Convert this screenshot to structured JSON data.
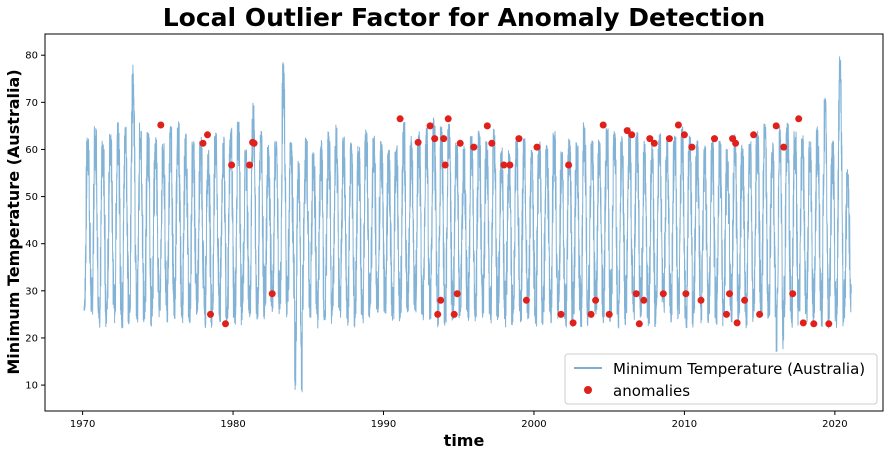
{
  "chart_data": {
    "type": "line",
    "title": "Local Outlier Factor for Anomaly Detection",
    "xlabel": "time",
    "ylabel": "Minimum Temperature (Australia)",
    "xlim": [
      1967.5,
      2023.2
    ],
    "ylim": [
      4.5,
      84.5
    ],
    "xticks": [
      1970,
      1980,
      1990,
      2000,
      2010,
      2020
    ],
    "yticks": [
      10,
      20,
      30,
      40,
      50,
      60,
      70,
      80
    ],
    "grid": false,
    "legend_position": "bottom-right",
    "series": [
      {
        "name": "Minimum Temperature (Australia)",
        "kind": "line",
        "color": "#7bafd4",
        "description_of_pattern": "seasonal oscillation between ~22 and ~70 with peaks up to ~80 and a minimum near 8 around 1984",
        "x": [
          1970.1,
          1970.6,
          1971.1,
          1971.6,
          1972.1,
          1972.6,
          1973.1,
          1973.6,
          1974.1,
          1974.6,
          1975.1,
          1975.6,
          1976.1,
          1976.6,
          1977.1,
          1977.6,
          1978.1,
          1978.6,
          1979.1,
          1979.6,
          1980.1,
          1980.6,
          1981.1,
          1981.6,
          1982.1,
          1982.6,
          1983.1,
          1983.6,
          1984.1,
          1984.6,
          1985.1,
          1985.6,
          1986.1,
          1986.6,
          1987.1,
          1987.6,
          1988.1,
          1988.6,
          1989.1,
          1989.6,
          1990.1,
          1990.6,
          1991.1,
          1991.6,
          1992.1,
          1992.6,
          1993.1,
          1993.6,
          1994.1,
          1994.6,
          1995.1,
          1995.6,
          1996.1,
          1996.6,
          1997.1,
          1997.6,
          1998.1,
          1998.6,
          1999.1,
          1999.6,
          2000.1,
          2000.6,
          2001.1,
          2001.6,
          2002.1,
          2002.6,
          2003.1,
          2003.6,
          2004.1,
          2004.6,
          2005.1,
          2005.6,
          2006.1,
          2006.6,
          2007.1,
          2007.6,
          2008.1,
          2008.6,
          2009.1,
          2009.6,
          2010.1,
          2010.6,
          2011.1,
          2011.6,
          2012.1,
          2012.6,
          2013.1,
          2013.6,
          2014.1,
          2014.6,
          2015.1,
          2015.6,
          2016.1,
          2016.6,
          2017.1,
          2017.6,
          2018.1,
          2018.6,
          2019.1,
          2019.6,
          2020.1,
          2020.6
        ],
        "y_high": [
          63,
          65,
          62,
          64,
          66,
          65,
          78,
          66,
          64,
          63,
          62,
          65,
          66,
          64,
          62,
          63,
          61,
          64,
          63,
          65,
          66,
          60,
          70,
          64,
          61,
          62,
          79,
          62,
          58,
          63,
          60,
          62,
          64,
          66,
          63,
          62,
          61,
          65,
          63,
          62,
          60,
          61,
          66,
          63,
          64,
          65,
          67,
          65,
          66,
          62,
          61,
          63,
          64,
          62,
          65,
          61,
          60,
          62,
          63,
          60,
          62,
          61,
          64,
          60,
          63,
          62,
          66,
          62,
          63,
          65,
          64,
          63,
          65,
          64,
          62,
          61,
          64,
          62,
          63,
          65,
          63,
          62,
          61,
          63,
          62,
          61,
          64,
          61,
          62,
          64,
          66,
          62,
          65,
          66,
          64,
          63,
          62,
          65,
          71,
          62,
          80,
          56
        ],
        "y_low": [
          25,
          24,
          22,
          26,
          23,
          22,
          24,
          23,
          22,
          24,
          25,
          23,
          24,
          22,
          23,
          25,
          22,
          24,
          23,
          24,
          22,
          25,
          23,
          24,
          26,
          25,
          24,
          27,
          8,
          26,
          24,
          22,
          23,
          25,
          24,
          22,
          24,
          23,
          26,
          25,
          24,
          23,
          24,
          25,
          25,
          23,
          24,
          22,
          23,
          24,
          25,
          23,
          24,
          25,
          23,
          24,
          22,
          25,
          23,
          24,
          22,
          25,
          23,
          24,
          22,
          25,
          22,
          25,
          24,
          23,
          24,
          22,
          25,
          23,
          24,
          22,
          24,
          25,
          23,
          24,
          22,
          25,
          23,
          24,
          22,
          25,
          23,
          24,
          22,
          25,
          23,
          24,
          17,
          24,
          22,
          25,
          23,
          24,
          22,
          23,
          22,
          24
        ]
      },
      {
        "name": "anomalies",
        "kind": "scatter",
        "color": "#e0201b",
        "x": [
          1975.2,
          1978.0,
          1978.3,
          1978.5,
          1979.5,
          1979.9,
          1981.1,
          1981.3,
          1981.4,
          1982.6,
          1991.1,
          1992.3,
          1993.1,
          1993.4,
          1993.6,
          1993.8,
          1994.0,
          1994.1,
          1994.3,
          1994.7,
          1994.9,
          1995.1,
          1996.0,
          1996.9,
          1997.2,
          1998.0,
          1998.4,
          1999.0,
          1999.5,
          2000.2,
          2001.8,
          2002.3,
          2002.6,
          2003.8,
          2004.1,
          2004.6,
          2005.0,
          2006.2,
          2006.5,
          2006.8,
          2007.0,
          2007.3,
          2007.7,
          2008.0,
          2008.6,
          2009.0,
          2009.6,
          2010.0,
          2010.1,
          2010.5,
          2011.1,
          2012.0,
          2012.8,
          2013.0,
          2013.2,
          2013.4,
          2013.5,
          2014.0,
          2014.6,
          2015.0,
          2016.1,
          2016.6,
          2017.2,
          2017.6,
          2017.9,
          2018.6,
          2019.6
        ],
        "y": [
          65.2,
          61.3,
          63.1,
          25.0,
          23.0,
          56.7,
          56.7,
          61.5,
          61.3,
          29.4,
          66.5,
          61.5,
          65.0,
          62.3,
          25.0,
          28.0,
          62.3,
          56.7,
          66.5,
          25.0,
          29.4,
          61.3,
          60.5,
          65.0,
          61.3,
          56.7,
          56.7,
          62.3,
          28.0,
          60.5,
          25.0,
          56.7,
          23.2,
          25.0,
          28.0,
          65.2,
          25.0,
          64.0,
          63.1,
          29.4,
          23.0,
          28.0,
          62.3,
          61.3,
          29.4,
          62.3,
          65.2,
          63.1,
          29.4,
          60.5,
          28.0,
          62.3,
          25.0,
          29.4,
          62.3,
          61.3,
          23.2,
          28.0,
          63.1,
          25.0,
          65.0,
          60.5,
          29.4,
          66.5,
          23.2,
          23.0,
          23.0
        ]
      }
    ],
    "legend": [
      {
        "label": "Minimum Temperature (Australia)",
        "marker": "line",
        "color": "#7bafd4"
      },
      {
        "label": "anomalies",
        "marker": "dot",
        "color": "#e0201b"
      }
    ]
  }
}
